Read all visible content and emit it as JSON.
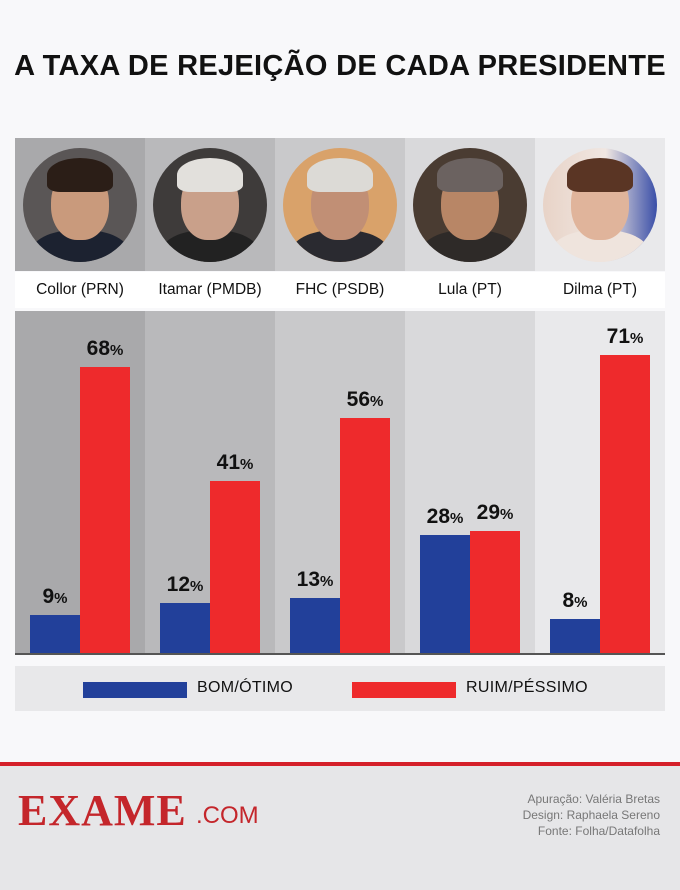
{
  "title": "A TAXA DE REJEIÇÃO DE CADA PRESIDENTE",
  "colors": {
    "bom": "#22409a",
    "ruim": "#ee2a2c",
    "col_bg": [
      "#a9a9ab",
      "#b9b9bb",
      "#c9c9cb",
      "#d9d9db",
      "#e9e9eb"
    ]
  },
  "chart_data": {
    "type": "bar",
    "categories": [
      "Collor (PRN)",
      "Itamar (PMDB)",
      "FHC (PSDB)",
      "Lula (PT)",
      "Dilma (PT)"
    ],
    "series": [
      {
        "name": "BOM/ÓTIMO",
        "values": [
          9,
          12,
          13,
          28,
          8
        ]
      },
      {
        "name": "RUIM/PÉSSIMO",
        "values": [
          68,
          41,
          56,
          29,
          71
        ]
      }
    ],
    "value_suffix": "%",
    "ylim": [
      0,
      80
    ],
    "legend": "bottom"
  },
  "legend": {
    "bom": "BOM/ÓTIMO",
    "ruim": "RUIM/PÉSSIMO"
  },
  "footer": {
    "logo": "EXAME",
    "logo_suffix": ".COM",
    "credits": [
      "Apuração: Valéria Bretas",
      "Design: Raphaela Sereno",
      "Fonte: Folha/Datafolha"
    ]
  }
}
